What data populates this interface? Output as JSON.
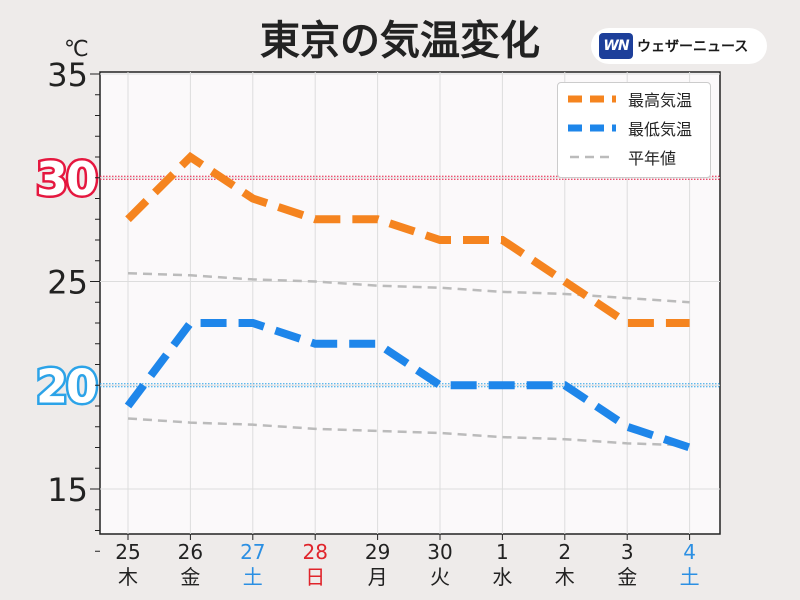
{
  "title": "東京の気温変化",
  "logo": {
    "badge": "WN",
    "text": "ウェザーニュース"
  },
  "colors": {
    "background": "#eeebea",
    "plot_background": "#fbf9fa",
    "high": "#f5841f",
    "low": "#1e86ea",
    "normal": "#bbbbbb",
    "ref30": "#e5173f",
    "ref20": "#2ca3e8",
    "saturday": "#2b8fe3",
    "sunday": "#e0242b",
    "text": "#222222"
  },
  "chart_data": {
    "type": "line",
    "title": "東京の気温変化",
    "ylabel": "℃",
    "ylim": [
      12,
      35
    ],
    "y_ticks": [
      "35",
      "25",
      "15"
    ],
    "y_tick_values": [
      35,
      25,
      15
    ],
    "grid": true,
    "legend_position": "top-right",
    "categories": [
      "25",
      "26",
      "27",
      "28",
      "29",
      "30",
      "1",
      "2",
      "3",
      "4"
    ],
    "weekdays": [
      "木",
      "金",
      "土",
      "日",
      "月",
      "火",
      "水",
      "木",
      "金",
      "土"
    ],
    "day_types": [
      "weekday",
      "weekday",
      "saturday",
      "sunday",
      "weekday",
      "weekday",
      "weekday",
      "weekday",
      "weekday",
      "saturday"
    ],
    "series": [
      {
        "name": "最高気温",
        "key": "high",
        "values": [
          28,
          31,
          29,
          28,
          28,
          27,
          27,
          25,
          23,
          23
        ]
      },
      {
        "name": "最低気温",
        "key": "low",
        "values": [
          19,
          23,
          23,
          22,
          22,
          20,
          20,
          20,
          18,
          17
        ]
      },
      {
        "name": "平年値",
        "key": "normal",
        "values_high": [
          25.4,
          25.3,
          25.1,
          25.0,
          24.8,
          24.7,
          24.5,
          24.4,
          24.2,
          24.0
        ],
        "values_low": [
          18.4,
          18.2,
          18.1,
          17.9,
          17.8,
          17.7,
          17.5,
          17.4,
          17.2,
          17.1
        ]
      }
    ],
    "reference_lines": [
      {
        "value": 30,
        "label": "30",
        "key": "ref30"
      },
      {
        "value": 20,
        "label": "20",
        "key": "ref20"
      }
    ]
  }
}
